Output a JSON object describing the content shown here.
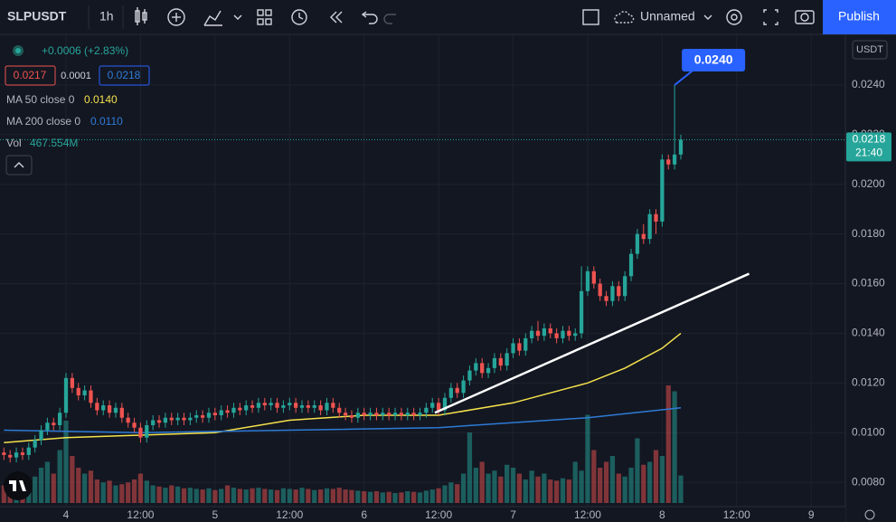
{
  "toolbar": {
    "symbol": "SLPUSDT",
    "interval": "1h",
    "layout_name": "Unnamed",
    "publish": "Publish"
  },
  "legend": {
    "change": "+0.0006 (+2.83%)",
    "bid": "0.0217",
    "spread": "0.0001",
    "ask": "0.0218",
    "ma50_label": "MA 50 close 0",
    "ma50_value": "0.0140",
    "ma200_label": "MA 200 close 0",
    "ma200_value": "0.0110",
    "volume_label": "Vol",
    "volume_value": "467.554M"
  },
  "chart_data": {
    "type": "candlestick",
    "currency": "USDT",
    "up_color": "#26a69a",
    "down_color": "#ef5350",
    "grid": true,
    "x": [
      -10,
      -9,
      -8,
      -7,
      -6,
      -5,
      -4,
      -3,
      -2,
      -1,
      0,
      1,
      2,
      3,
      4,
      5,
      6,
      7,
      8,
      9,
      10,
      11,
      12,
      13,
      14,
      15,
      16,
      17,
      18,
      19,
      20,
      21,
      22,
      23,
      24,
      25,
      26,
      27,
      28,
      29,
      30,
      31,
      32,
      33,
      34,
      35,
      36,
      37,
      38,
      39,
      40,
      41,
      42,
      43,
      44,
      45,
      46,
      47,
      48,
      49,
      50,
      51,
      52,
      53,
      54,
      55,
      56,
      57,
      58,
      59,
      60,
      61,
      62,
      63,
      64,
      65,
      66,
      67,
      68,
      69,
      70,
      71,
      72,
      73,
      74,
      75,
      76,
      77,
      78,
      79,
      80,
      81,
      82,
      83,
      84,
      85,
      86,
      87,
      88,
      89,
      90,
      91,
      92,
      93,
      94,
      95,
      96,
      97,
      98,
      99
    ],
    "open": [
      0.0092,
      0.0091,
      0.009,
      0.0092,
      0.0091,
      0.0094,
      0.0097,
      0.0101,
      0.0104,
      0.0103,
      0.0108,
      0.0122,
      0.0118,
      0.0115,
      0.0117,
      0.0112,
      0.0109,
      0.0111,
      0.0108,
      0.011,
      0.0106,
      0.0104,
      0.0102,
      0.0098,
      0.0103,
      0.0105,
      0.0104,
      0.0106,
      0.0105,
      0.0106,
      0.0105,
      0.0106,
      0.0107,
      0.0106,
      0.0108,
      0.0107,
      0.0109,
      0.0108,
      0.011,
      0.0109,
      0.0111,
      0.011,
      0.0112,
      0.0111,
      0.0112,
      0.011,
      0.0111,
      0.0112,
      0.011,
      0.0111,
      0.011,
      0.0111,
      0.0109,
      0.0112,
      0.011,
      0.0108,
      0.0107,
      0.0106,
      0.0108,
      0.0107,
      0.0108,
      0.0107,
      0.0108,
      0.0107,
      0.0108,
      0.0107,
      0.0108,
      0.0107,
      0.0108,
      0.011,
      0.0112,
      0.0109,
      0.0114,
      0.0118,
      0.0116,
      0.0121,
      0.0125,
      0.0128,
      0.0124,
      0.0126,
      0.013,
      0.0127,
      0.0132,
      0.0136,
      0.0133,
      0.0138,
      0.0141,
      0.0139,
      0.0142,
      0.014,
      0.0138,
      0.0141,
      0.0139,
      0.014,
      0.0157,
      0.0165,
      0.016,
      0.0155,
      0.0153,
      0.0159,
      0.0155,
      0.0163,
      0.0172,
      0.018,
      0.0178,
      0.0188,
      0.0185,
      0.021,
      0.0208,
      0.0212
    ],
    "high": [
      0.0094,
      0.0093,
      0.0094,
      0.0094,
      0.0096,
      0.0099,
      0.0103,
      0.0106,
      0.0106,
      0.011,
      0.0124,
      0.0124,
      0.012,
      0.0119,
      0.0119,
      0.0114,
      0.0113,
      0.0113,
      0.0112,
      0.0112,
      0.0108,
      0.0106,
      0.0104,
      0.0105,
      0.0107,
      0.0107,
      0.0108,
      0.0108,
      0.0108,
      0.0108,
      0.0108,
      0.0109,
      0.0109,
      0.011,
      0.011,
      0.0111,
      0.0111,
      0.0112,
      0.0112,
      0.0113,
      0.0113,
      0.0114,
      0.0114,
      0.0114,
      0.0114,
      0.0113,
      0.0114,
      0.0114,
      0.0113,
      0.0113,
      0.0113,
      0.0113,
      0.0114,
      0.0114,
      0.0112,
      0.011,
      0.0109,
      0.011,
      0.011,
      0.011,
      0.011,
      0.011,
      0.011,
      0.011,
      0.011,
      0.011,
      0.011,
      0.011,
      0.0112,
      0.0114,
      0.0114,
      0.0116,
      0.012,
      0.012,
      0.0123,
      0.0127,
      0.013,
      0.013,
      0.0128,
      0.0132,
      0.0132,
      0.0134,
      0.0138,
      0.0138,
      0.014,
      0.0143,
      0.0145,
      0.0144,
      0.0144,
      0.0142,
      0.0143,
      0.0143,
      0.0142,
      0.0167,
      0.0167,
      0.0167,
      0.0162,
      0.0157,
      0.0161,
      0.0161,
      0.0165,
      0.0174,
      0.0182,
      0.0184,
      0.019,
      0.019,
      0.0212,
      0.0212,
      0.024,
      0.022
    ],
    "low": [
      0.0089,
      0.0088,
      0.0088,
      0.0089,
      0.0089,
      0.0092,
      0.0095,
      0.0099,
      0.0101,
      0.0101,
      0.0106,
      0.0116,
      0.0113,
      0.0113,
      0.011,
      0.0107,
      0.0107,
      0.0106,
      0.0106,
      0.0104,
      0.0102,
      0.01,
      0.0096,
      0.0096,
      0.0101,
      0.0102,
      0.0102,
      0.0103,
      0.0103,
      0.0103,
      0.0103,
      0.0104,
      0.0104,
      0.0104,
      0.0105,
      0.0105,
      0.0106,
      0.0106,
      0.0107,
      0.0107,
      0.0108,
      0.0108,
      0.0109,
      0.0109,
      0.0108,
      0.0108,
      0.0109,
      0.0108,
      0.0108,
      0.0108,
      0.0108,
      0.0107,
      0.0107,
      0.0108,
      0.0106,
      0.0105,
      0.0104,
      0.0104,
      0.0105,
      0.0105,
      0.0105,
      0.0105,
      0.0105,
      0.0105,
      0.0105,
      0.0105,
      0.0105,
      0.0105,
      0.0106,
      0.0108,
      0.0107,
      0.0107,
      0.0112,
      0.0114,
      0.0114,
      0.0119,
      0.0123,
      0.0122,
      0.0122,
      0.0124,
      0.0125,
      0.0125,
      0.013,
      0.0131,
      0.0131,
      0.0136,
      0.0137,
      0.0137,
      0.0138,
      0.0136,
      0.0136,
      0.0137,
      0.0137,
      0.0138,
      0.0155,
      0.0158,
      0.0153,
      0.0151,
      0.0151,
      0.0153,
      0.0153,
      0.0161,
      0.017,
      0.0176,
      0.0176,
      0.018,
      0.0183,
      0.0206,
      0.0206,
      0.021
    ],
    "close": [
      0.0091,
      0.009,
      0.0092,
      0.0091,
      0.0094,
      0.0097,
      0.0101,
      0.0104,
      0.0103,
      0.0108,
      0.0122,
      0.0118,
      0.0115,
      0.0117,
      0.0112,
      0.0109,
      0.0111,
      0.0108,
      0.011,
      0.0106,
      0.0104,
      0.0102,
      0.0098,
      0.0103,
      0.0105,
      0.0104,
      0.0106,
      0.0105,
      0.0106,
      0.0105,
      0.0106,
      0.0107,
      0.0106,
      0.0108,
      0.0107,
      0.0109,
      0.0108,
      0.011,
      0.0109,
      0.0111,
      0.011,
      0.0112,
      0.0111,
      0.0112,
      0.011,
      0.0111,
      0.0112,
      0.011,
      0.0111,
      0.011,
      0.0111,
      0.0109,
      0.0112,
      0.011,
      0.0108,
      0.0107,
      0.0106,
      0.0108,
      0.0107,
      0.0108,
      0.0107,
      0.0108,
      0.0107,
      0.0108,
      0.0107,
      0.0108,
      0.0107,
      0.0108,
      0.011,
      0.0112,
      0.0109,
      0.0114,
      0.0118,
      0.0116,
      0.0121,
      0.0125,
      0.0128,
      0.0124,
      0.0126,
      0.013,
      0.0127,
      0.0132,
      0.0136,
      0.0133,
      0.0138,
      0.0141,
      0.0139,
      0.0142,
      0.014,
      0.0138,
      0.0141,
      0.0139,
      0.014,
      0.0157,
      0.0165,
      0.016,
      0.0155,
      0.0153,
      0.0159,
      0.0155,
      0.0163,
      0.0172,
      0.018,
      0.0178,
      0.0188,
      0.0185,
      0.021,
      0.0208,
      0.0212,
      0.0218
    ],
    "volume": [
      300,
      250,
      280,
      320,
      400,
      450,
      600,
      700,
      500,
      900,
      1400,
      800,
      600,
      500,
      550,
      400,
      350,
      380,
      300,
      320,
      350,
      400,
      500,
      380,
      300,
      280,
      260,
      300,
      280,
      250,
      260,
      240,
      230,
      250,
      220,
      240,
      300,
      260,
      240,
      230,
      250,
      260,
      240,
      230,
      220,
      250,
      240,
      230,
      260,
      240,
      220,
      230,
      250,
      240,
      260,
      230,
      220,
      210,
      200,
      190,
      200,
      180,
      190,
      170,
      180,
      200,
      190,
      180,
      210,
      230,
      250,
      300,
      350,
      320,
      500,
      1200,
      600,
      700,
      500,
      550,
      450,
      650,
      600,
      500,
      400,
      550,
      450,
      500,
      400,
      380,
      420,
      400,
      700,
      550,
      1500,
      900,
      600,
      700,
      800,
      500,
      450,
      600,
      1100,
      650,
      700,
      900,
      800,
      2000,
      1900,
      467.554
    ],
    "moving_averages": [
      {
        "name": "MA 50",
        "color": "#f5e24b",
        "x": [
          -10,
          0,
          12,
          24,
          36,
          48,
          60,
          72,
          84,
          90,
          96,
          99
        ],
        "values": [
          0.0096,
          0.0098,
          0.0099,
          0.01,
          0.0105,
          0.0107,
          0.0107,
          0.0112,
          0.012,
          0.0126,
          0.0134,
          0.014
        ]
      },
      {
        "name": "MA 200",
        "color": "#2e7bd6",
        "x": [
          -10,
          12,
          36,
          60,
          84,
          99
        ],
        "values": [
          0.0101,
          0.01,
          0.0101,
          0.0102,
          0.0106,
          0.011
        ]
      }
    ],
    "trendline": {
      "color": "#ffffff",
      "x": [
        59.4,
        110
      ],
      "values": [
        0.0108,
        0.0164
      ]
    },
    "last_price": {
      "value": 0.0218,
      "label": "0.0218",
      "countdown": "21:40"
    },
    "high_callout": {
      "x": 98,
      "value": 0.024,
      "label": "0.0240"
    },
    "xlim": [
      -10.63,
      125.5
    ],
    "ylim": [
      0.00702,
      0.02604
    ],
    "xticks": [
      {
        "value": 0,
        "label": "4"
      },
      {
        "value": 12,
        "label": "12:00"
      },
      {
        "value": 24,
        "label": "5"
      },
      {
        "value": 36,
        "label": "12:00"
      },
      {
        "value": 48,
        "label": "6"
      },
      {
        "value": 60,
        "label": "12:00"
      },
      {
        "value": 72,
        "label": "7"
      },
      {
        "value": 84,
        "label": "12:00"
      },
      {
        "value": 96,
        "label": "8"
      },
      {
        "value": 108,
        "label": "12:00"
      },
      {
        "value": 120,
        "label": "9"
      }
    ],
    "yticks": [
      {
        "value": 0.008,
        "label": "0.0080"
      },
      {
        "value": 0.01,
        "label": "0.0100"
      },
      {
        "value": 0.012,
        "label": "0.0120"
      },
      {
        "value": 0.014,
        "label": "0.0140"
      },
      {
        "value": 0.016,
        "label": "0.0160"
      },
      {
        "value": 0.018,
        "label": "0.0180"
      },
      {
        "value": 0.02,
        "label": "0.0200"
      },
      {
        "value": 0.022,
        "label": "0.0220"
      },
      {
        "value": 0.024,
        "label": "0.0240"
      }
    ]
  }
}
